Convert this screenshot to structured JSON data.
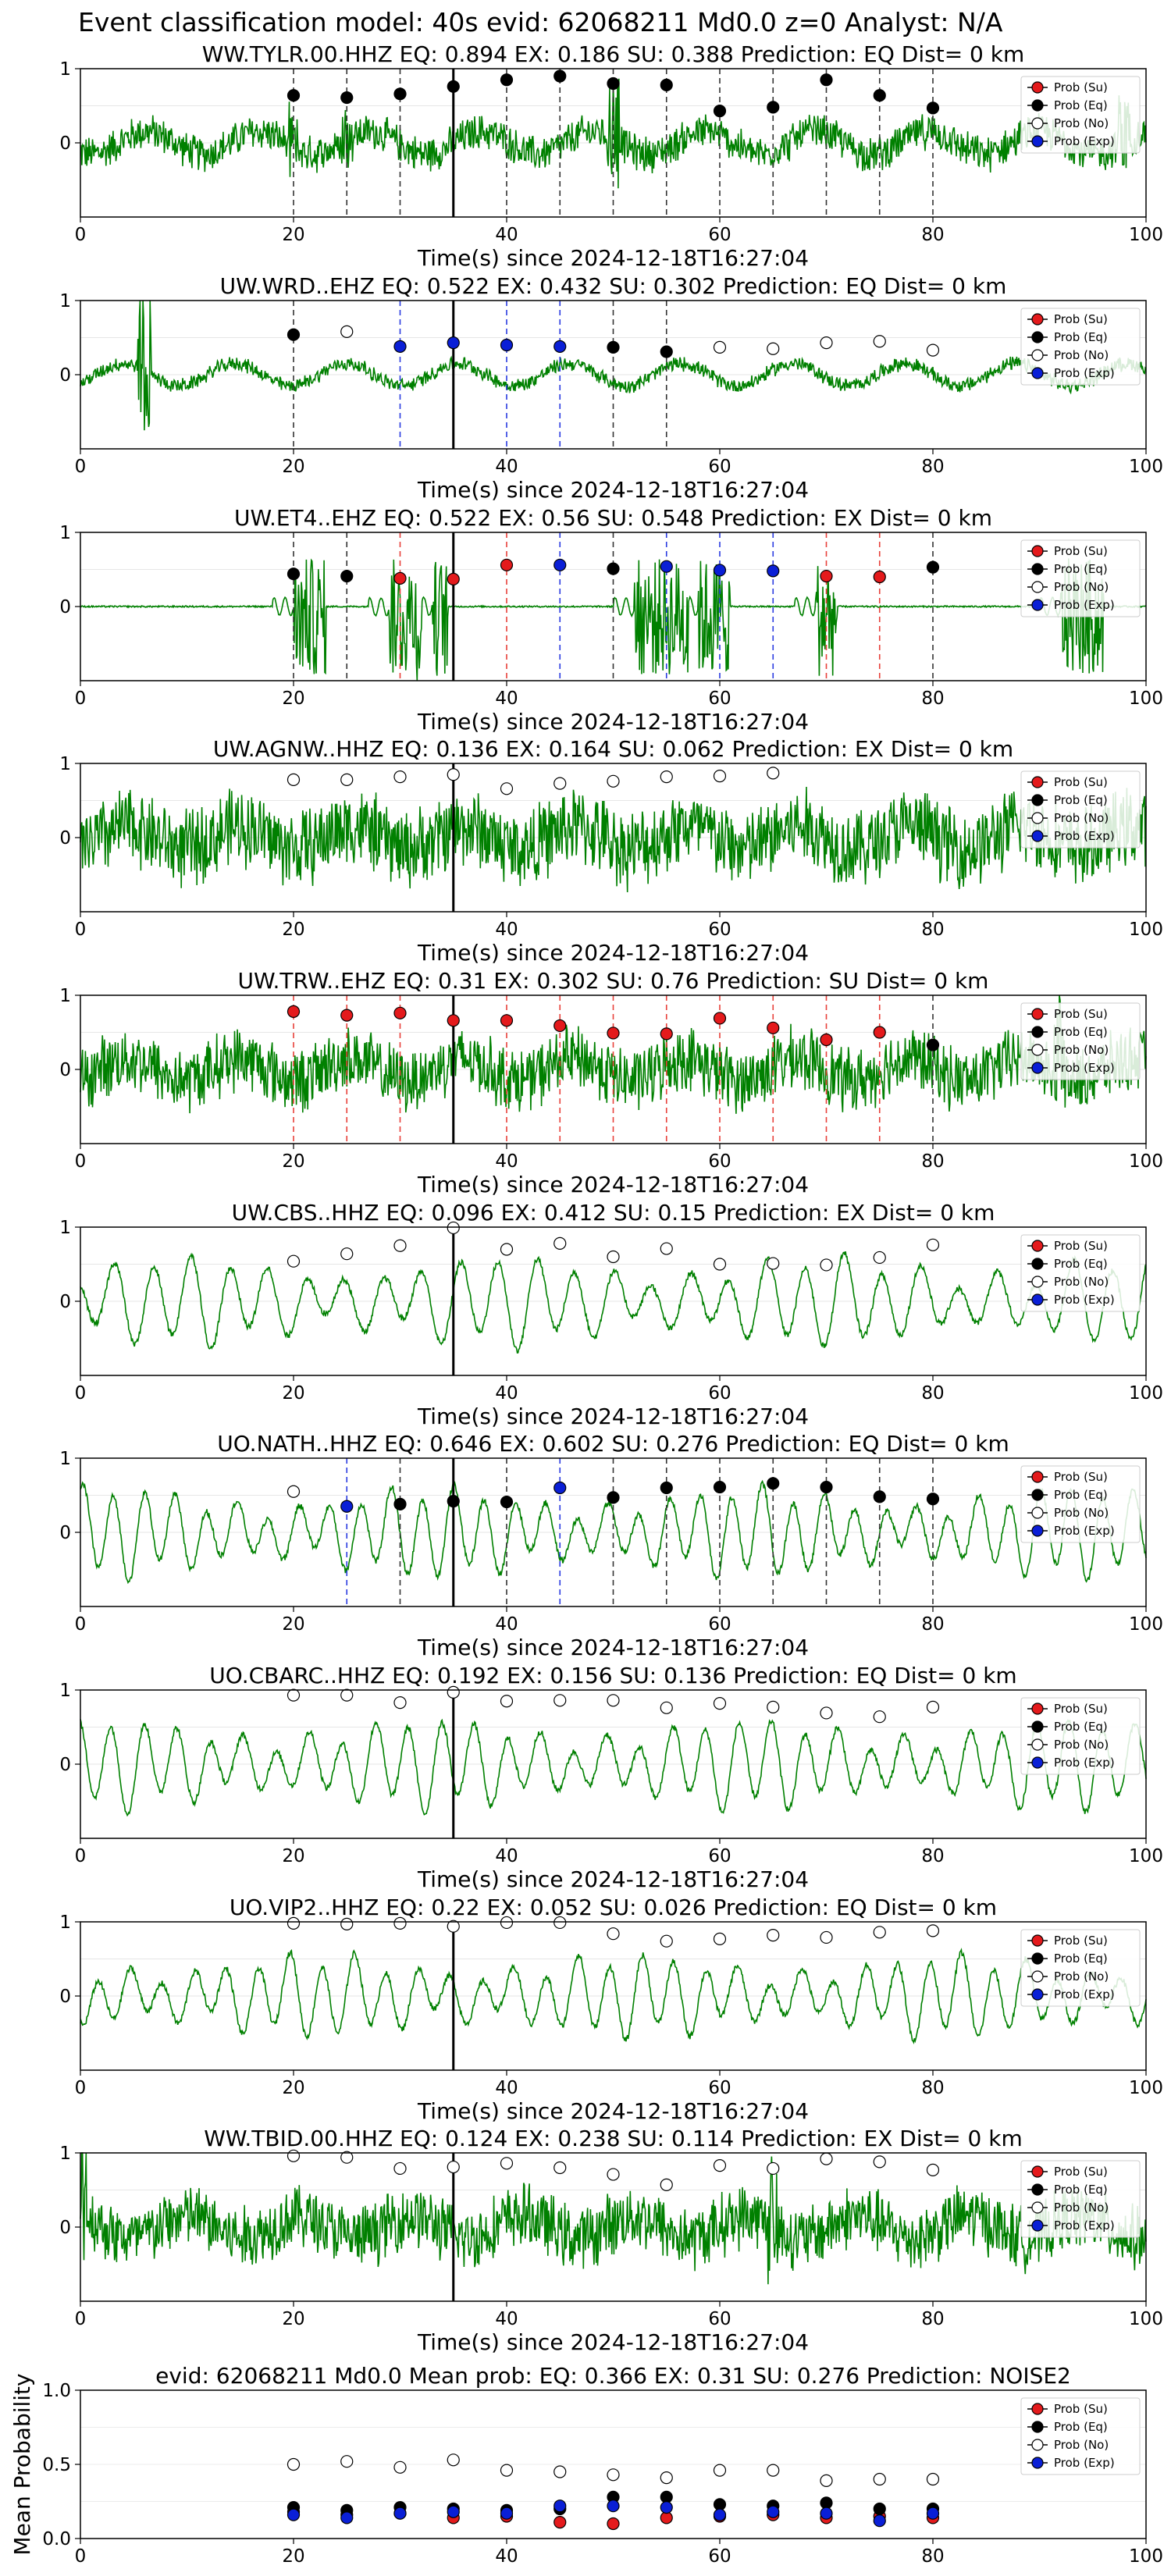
{
  "suptitle": "Event classification model: 40s evid: 62068211 Md0.0 z=0 Analyst: N/A",
  "xlabel": "Time(s) since 2024-12-18T16:27:04",
  "mean_ylabel": "Mean Probability",
  "legend": [
    "Prob (Su)",
    "Prob (Eq)",
    "Prob (No)",
    "Prob (Exp)"
  ],
  "colors": {
    "su": "#e41a1c",
    "eq": "#000000",
    "no": "#ffffff",
    "exp": "#0a1fd6",
    "wave": "#008000"
  },
  "chart_data": [
    {
      "type": "line",
      "waveform": "noise",
      "amp": 0.25,
      "spikes": [
        [
          20,
          0.3
        ],
        [
          25,
          0.35
        ],
        [
          50,
          0.8
        ],
        [
          98,
          0.6
        ]
      ],
      "title": "WW.TYLR.00.HHZ   EQ: 0.894  EX: 0.186  SU: 0.388   Prediction: EQ    Dist= 0 km",
      "xlim": [
        0,
        100
      ],
      "ylim": [
        -1,
        1
      ],
      "xticks": [
        0,
        20,
        40,
        60,
        80,
        100
      ],
      "yticks": [
        1,
        0
      ],
      "pick_time": 35,
      "points": [
        [
          20,
          0.64,
          "eq"
        ],
        [
          25,
          0.61,
          "eq"
        ],
        [
          30,
          0.66,
          "eq"
        ],
        [
          35,
          0.76,
          "eq"
        ],
        [
          40,
          0.85,
          "eq"
        ],
        [
          45,
          0.9,
          "eq"
        ],
        [
          50,
          0.8,
          "eq"
        ],
        [
          55,
          0.78,
          "eq"
        ],
        [
          60,
          0.43,
          "eq"
        ],
        [
          65,
          0.48,
          "eq"
        ],
        [
          70,
          0.85,
          "eq"
        ],
        [
          75,
          0.64,
          "eq"
        ],
        [
          80,
          0.47,
          "eq"
        ]
      ]
    },
    {
      "type": "line",
      "waveform": "noise",
      "amp": 0.1,
      "spikes": [
        [
          6,
          1.0
        ]
      ],
      "title": "UW.WRD..EHZ   EQ: 0.522  EX: 0.432  SU: 0.302   Prediction: EQ    Dist= 0 km",
      "xlim": [
        0,
        100
      ],
      "ylim": [
        -1,
        1
      ],
      "xticks": [
        0,
        20,
        40,
        60,
        80,
        100
      ],
      "yticks": [
        1,
        0
      ],
      "pick_time": 35,
      "points": [
        [
          20,
          0.54,
          "eq"
        ],
        [
          25,
          0.58,
          "no"
        ],
        [
          30,
          0.38,
          "exp"
        ],
        [
          35,
          0.43,
          "exp"
        ],
        [
          40,
          0.4,
          "exp"
        ],
        [
          45,
          0.38,
          "exp"
        ],
        [
          50,
          0.37,
          "eq"
        ],
        [
          55,
          0.31,
          "eq"
        ],
        [
          60,
          0.37,
          "no"
        ],
        [
          65,
          0.35,
          "no"
        ],
        [
          70,
          0.43,
          "no"
        ],
        [
          75,
          0.45,
          "no"
        ],
        [
          80,
          0.33,
          "no"
        ]
      ]
    },
    {
      "type": "line",
      "waveform": "bursts",
      "amp": 0.02,
      "bursts": [
        [
          20,
          23
        ],
        [
          29,
          32
        ],
        [
          33,
          34.5
        ],
        [
          52,
          57
        ],
        [
          58,
          61
        ],
        [
          69,
          71
        ],
        [
          92,
          96
        ]
      ],
      "title": "UW.ET4..EHZ   EQ: 0.522  EX: 0.56  SU: 0.548   Prediction: EX    Dist= 0 km",
      "xlim": [
        0,
        100
      ],
      "ylim": [
        -1,
        1
      ],
      "xticks": [
        0,
        20,
        40,
        60,
        80,
        100
      ],
      "yticks": [
        1,
        0
      ],
      "pick_time": 35,
      "points": [
        [
          20,
          0.44,
          "eq"
        ],
        [
          25,
          0.41,
          "eq"
        ],
        [
          30,
          0.38,
          "su"
        ],
        [
          35,
          0.37,
          "su"
        ],
        [
          40,
          0.56,
          "su"
        ],
        [
          45,
          0.56,
          "exp"
        ],
        [
          50,
          0.51,
          "eq"
        ],
        [
          55,
          0.54,
          "exp"
        ],
        [
          60,
          0.49,
          "exp"
        ],
        [
          65,
          0.48,
          "exp"
        ],
        [
          70,
          0.41,
          "su"
        ],
        [
          75,
          0.4,
          "su"
        ],
        [
          80,
          0.53,
          "eq"
        ]
      ]
    },
    {
      "type": "line",
      "waveform": "noise",
      "amp": 0.55,
      "spikes": [],
      "title": "UW.AGNW..HHZ   EQ: 0.136  EX: 0.164  SU: 0.062   Prediction: EX    Dist= 0 km",
      "xlim": [
        0,
        100
      ],
      "ylim": [
        -1,
        1
      ],
      "xticks": [
        0,
        20,
        40,
        60,
        80,
        100
      ],
      "yticks": [
        1,
        0
      ],
      "pick_time": 35,
      "points": [
        [
          20,
          0.78,
          "no"
        ],
        [
          25,
          0.78,
          "no"
        ],
        [
          30,
          0.82,
          "no"
        ],
        [
          35,
          0.85,
          "no"
        ],
        [
          40,
          0.66,
          "no"
        ],
        [
          45,
          0.73,
          "no"
        ],
        [
          50,
          0.76,
          "no"
        ],
        [
          55,
          0.82,
          "no"
        ],
        [
          60,
          0.83,
          "no"
        ],
        [
          65,
          0.87,
          "no"
        ]
      ]
    },
    {
      "type": "line",
      "waveform": "noise",
      "amp": 0.45,
      "spikes": [
        [
          92,
          0.9
        ]
      ],
      "title": "UW.TRW..EHZ   EQ: 0.31  EX: 0.302  SU: 0.76   Prediction: SU    Dist= 0 km",
      "xlim": [
        0,
        100
      ],
      "ylim": [
        -1,
        1
      ],
      "xticks": [
        0,
        20,
        40,
        60,
        80,
        100
      ],
      "yticks": [
        1,
        0
      ],
      "pick_time": 35,
      "points": [
        [
          20,
          0.78,
          "su"
        ],
        [
          25,
          0.73,
          "su"
        ],
        [
          30,
          0.76,
          "su"
        ],
        [
          35,
          0.66,
          "su"
        ],
        [
          40,
          0.66,
          "su"
        ],
        [
          45,
          0.59,
          "su"
        ],
        [
          50,
          0.49,
          "su"
        ],
        [
          55,
          0.48,
          "su"
        ],
        [
          60,
          0.69,
          "su"
        ],
        [
          65,
          0.56,
          "su"
        ],
        [
          70,
          0.4,
          "su"
        ],
        [
          75,
          0.5,
          "su"
        ],
        [
          80,
          0.33,
          "eq"
        ]
      ]
    },
    {
      "type": "line",
      "waveform": "sine",
      "amp": 0.55,
      "period": 3.6,
      "title": "UW.CBS..HHZ   EQ: 0.096  EX: 0.412  SU: 0.15   Prediction: EX    Dist= 0 km",
      "xlim": [
        0,
        100
      ],
      "ylim": [
        -1,
        1
      ],
      "xticks": [
        0,
        20,
        40,
        60,
        80,
        100
      ],
      "yticks": [
        1,
        0
      ],
      "pick_time": 35,
      "points": [
        [
          20,
          0.54,
          "no"
        ],
        [
          25,
          0.64,
          "no"
        ],
        [
          30,
          0.75,
          "no"
        ],
        [
          35,
          0.99,
          "no"
        ],
        [
          40,
          0.7,
          "no"
        ],
        [
          45,
          0.78,
          "no"
        ],
        [
          50,
          0.6,
          "no"
        ],
        [
          55,
          0.71,
          "no"
        ],
        [
          60,
          0.5,
          "no"
        ],
        [
          65,
          0.51,
          "no"
        ],
        [
          70,
          0.49,
          "no"
        ],
        [
          75,
          0.59,
          "no"
        ],
        [
          80,
          0.76,
          "no"
        ]
      ]
    },
    {
      "type": "line",
      "waveform": "sine",
      "amp": 0.55,
      "period": 2.9,
      "title": "UO.NATH..HHZ   EQ: 0.646  EX: 0.602  SU: 0.276   Prediction: EQ    Dist= 0 km",
      "xlim": [
        0,
        100
      ],
      "ylim": [
        -1,
        1
      ],
      "xticks": [
        0,
        20,
        40,
        60,
        80,
        100
      ],
      "yticks": [
        1,
        0
      ],
      "pick_time": 35,
      "points": [
        [
          20,
          0.55,
          "no"
        ],
        [
          25,
          0.35,
          "exp"
        ],
        [
          30,
          0.38,
          "eq"
        ],
        [
          35,
          0.42,
          "eq"
        ],
        [
          40,
          0.41,
          "eq"
        ],
        [
          45,
          0.6,
          "exp"
        ],
        [
          50,
          0.47,
          "eq"
        ],
        [
          55,
          0.6,
          "eq"
        ],
        [
          60,
          0.61,
          "eq"
        ],
        [
          65,
          0.66,
          "eq"
        ],
        [
          70,
          0.61,
          "eq"
        ],
        [
          75,
          0.48,
          "eq"
        ],
        [
          80,
          0.45,
          "eq"
        ]
      ]
    },
    {
      "type": "line",
      "waveform": "sine",
      "amp": 0.55,
      "period": 3.1,
      "title": "UO.CBARC..HHZ   EQ: 0.192  EX: 0.156  SU: 0.136   Prediction: EQ    Dist= 0 km",
      "xlim": [
        0,
        100
      ],
      "ylim": [
        -1,
        1
      ],
      "xticks": [
        0,
        20,
        40,
        60,
        80,
        100
      ],
      "yticks": [
        1,
        0
      ],
      "pick_time": 35,
      "points": [
        [
          20,
          0.93,
          "no"
        ],
        [
          25,
          0.93,
          "no"
        ],
        [
          30,
          0.83,
          "no"
        ],
        [
          35,
          0.97,
          "no"
        ],
        [
          40,
          0.85,
          "no"
        ],
        [
          45,
          0.86,
          "no"
        ],
        [
          50,
          0.86,
          "no"
        ],
        [
          55,
          0.76,
          "no"
        ],
        [
          60,
          0.82,
          "no"
        ],
        [
          65,
          0.77,
          "no"
        ],
        [
          70,
          0.69,
          "no"
        ],
        [
          75,
          0.64,
          "no"
        ],
        [
          80,
          0.77,
          "no"
        ]
      ]
    },
    {
      "type": "line",
      "waveform": "sine",
      "amp": 0.5,
      "period": 3.0,
      "title": "UO.VIP2..HHZ   EQ: 0.22  EX: 0.052  SU: 0.026   Prediction: EQ    Dist= 0 km",
      "xlim": [
        0,
        100
      ],
      "ylim": [
        -1,
        1
      ],
      "xticks": [
        0,
        20,
        40,
        60,
        80,
        100
      ],
      "yticks": [
        1,
        0
      ],
      "pick_time": 35,
      "points": [
        [
          20,
          0.98,
          "no"
        ],
        [
          25,
          0.97,
          "no"
        ],
        [
          30,
          0.98,
          "no"
        ],
        [
          35,
          0.94,
          "no"
        ],
        [
          40,
          0.99,
          "no"
        ],
        [
          45,
          0.99,
          "no"
        ],
        [
          50,
          0.84,
          "no"
        ],
        [
          55,
          0.74,
          "no"
        ],
        [
          60,
          0.77,
          "no"
        ],
        [
          65,
          0.82,
          "no"
        ],
        [
          70,
          0.79,
          "no"
        ],
        [
          75,
          0.86,
          "no"
        ],
        [
          80,
          0.88,
          "no"
        ]
      ]
    },
    {
      "type": "line",
      "waveform": "noise",
      "amp": 0.45,
      "spikes": [
        [
          0,
          0.9
        ],
        [
          65,
          0.8
        ]
      ],
      "title": "WW.TBID.00.HHZ   EQ: 0.124  EX: 0.238  SU: 0.114   Prediction: EX    Dist= 0 km",
      "xlim": [
        0,
        100
      ],
      "ylim": [
        -1,
        1
      ],
      "xticks": [
        0,
        20,
        40,
        60,
        80,
        100
      ],
      "yticks": [
        1,
        0
      ],
      "pick_time": 35,
      "points": [
        [
          20,
          0.96,
          "no"
        ],
        [
          25,
          0.94,
          "no"
        ],
        [
          30,
          0.79,
          "no"
        ],
        [
          35,
          0.81,
          "no"
        ],
        [
          40,
          0.86,
          "no"
        ],
        [
          45,
          0.8,
          "no"
        ],
        [
          50,
          0.71,
          "no"
        ],
        [
          55,
          0.57,
          "no"
        ],
        [
          60,
          0.83,
          "no"
        ],
        [
          65,
          0.79,
          "no"
        ],
        [
          70,
          0.92,
          "no"
        ],
        [
          75,
          0.88,
          "no"
        ],
        [
          80,
          0.77,
          "no"
        ]
      ]
    },
    {
      "type": "scatter",
      "title": "evid: 62068211  Md0.0   Mean prob:   EQ: 0.366  EX: 0.31  SU: 0.276   Prediction: NOISE2",
      "ylabel": "Mean Probability",
      "xlim": [
        0,
        100
      ],
      "ylim": [
        0,
        1
      ],
      "xticks": [
        0,
        20,
        40,
        60,
        80,
        100
      ],
      "yticks": [
        0.0,
        0.5,
        1.0
      ],
      "x": [
        20,
        25,
        30,
        35,
        40,
        45,
        50,
        55,
        60,
        65,
        70,
        75,
        80
      ],
      "series": [
        {
          "name": "Prob (Su)",
          "key": "su",
          "values": [
            0.18,
            0.16,
            0.17,
            0.14,
            0.15,
            0.11,
            0.1,
            0.14,
            0.15,
            0.16,
            0.14,
            0.15,
            0.14
          ]
        },
        {
          "name": "Prob (Eq)",
          "key": "eq",
          "values": [
            0.21,
            0.19,
            0.21,
            0.2,
            0.19,
            0.2,
            0.28,
            0.28,
            0.23,
            0.22,
            0.24,
            0.2,
            0.2
          ]
        },
        {
          "name": "Prob (No)",
          "key": "no",
          "values": [
            0.5,
            0.52,
            0.48,
            0.53,
            0.46,
            0.45,
            0.43,
            0.41,
            0.46,
            0.46,
            0.39,
            0.4,
            0.4
          ]
        },
        {
          "name": "Prob (Exp)",
          "key": "exp",
          "values": [
            0.16,
            0.14,
            0.17,
            0.18,
            0.17,
            0.22,
            0.22,
            0.21,
            0.16,
            0.18,
            0.17,
            0.12,
            0.17
          ]
        }
      ]
    }
  ]
}
